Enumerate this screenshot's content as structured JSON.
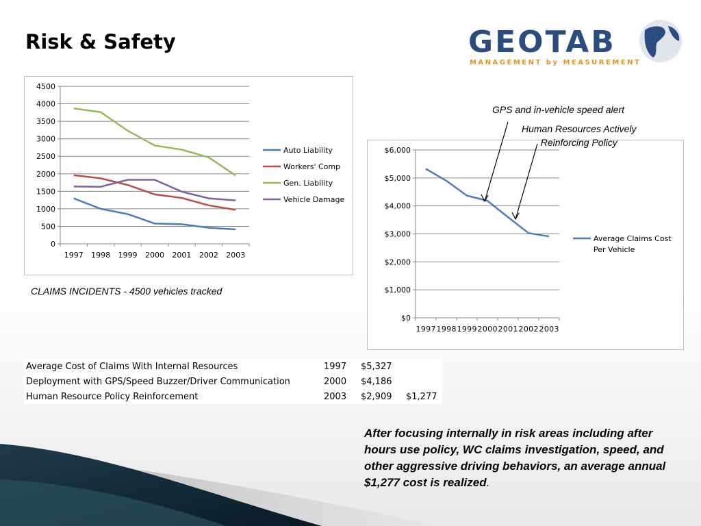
{
  "slide": {
    "title": "Risk & Safety"
  },
  "logo": {
    "word": "GEOTAB",
    "tagline": "MANAGEMENT by MEASUREMENT"
  },
  "caption": "CLAIMS INCIDENTS - 4500 vehicles tracked",
  "annotations": {
    "gps": "GPS and in-vehicle speed alert",
    "hr_line1": "Human Resources Actively",
    "hr_line2": "Reinforcing Policy"
  },
  "table": {
    "rows": [
      {
        "label": "Average Cost of Claims With Internal Resources",
        "year": "1997",
        "cost": "$5,327",
        "saving": ""
      },
      {
        "label": "Deployment with GPS/Speed Buzzer/Driver Communication",
        "year": "2000",
        "cost": "$4,186",
        "saving": ""
      },
      {
        "label": "Human Resource Policy Reinforcement",
        "year": "2003",
        "cost": "$2,909",
        "saving": "$1,277"
      }
    ]
  },
  "bottom_text": {
    "main": "After focusing internally in risk areas including after hours use policy, WC claims investigation, speed, and other aggressive driving behaviors, an average annual $1,277 cost is realized",
    "end": "."
  },
  "colors": {
    "auto": "#4a7ebb",
    "workers": "#be4b48",
    "gen": "#98b954",
    "vehicle": "#7d60a0",
    "avg": "#4a7ebb",
    "grid": "#868686",
    "logo_blue": "#2b4c7e",
    "logo_orange": "#e8931e"
  },
  "chart_data": [
    {
      "type": "line",
      "x": [
        "1997",
        "1998",
        "1999",
        "2000",
        "2001",
        "2002",
        "2003"
      ],
      "ylim": [
        0,
        4500
      ],
      "yticks": [
        "4500",
        "4000",
        "3500",
        "3000",
        "2500",
        "2000",
        "1500",
        "1000",
        "500",
        "0"
      ],
      "grid": true,
      "legend_position": "right",
      "series": [
        {
          "name": "Auto Liability",
          "values": [
            1300,
            1000,
            850,
            580,
            560,
            460,
            410
          ]
        },
        {
          "name": "Workers' Comp",
          "values": [
            1960,
            1870,
            1680,
            1410,
            1310,
            1100,
            970
          ]
        },
        {
          "name": "Gen. Liability",
          "values": [
            3870,
            3760,
            3230,
            2810,
            2690,
            2470,
            1950
          ]
        },
        {
          "name": "Vehicle Damage",
          "values": [
            1640,
            1630,
            1830,
            1830,
            1490,
            1300,
            1240
          ]
        }
      ]
    },
    {
      "type": "line",
      "x": [
        "1997",
        "1998",
        "1999",
        "2000",
        "2001",
        "2002",
        "2003"
      ],
      "ylim": [
        0,
        6000
      ],
      "yticks": [
        "$6,000",
        "$5,000",
        "$4,000",
        "$3,000",
        "$2,000",
        "$1,000",
        "$0"
      ],
      "grid": true,
      "legend_position": "right",
      "series": [
        {
          "name": "Average Claims Cost Per Vehicle",
          "legend_lines": [
            "Average Claims Cost",
            "Per Vehicle"
          ],
          "values": [
            5327,
            4900,
            4370,
            4186,
            3600,
            3030,
            2909
          ]
        }
      ]
    }
  ]
}
